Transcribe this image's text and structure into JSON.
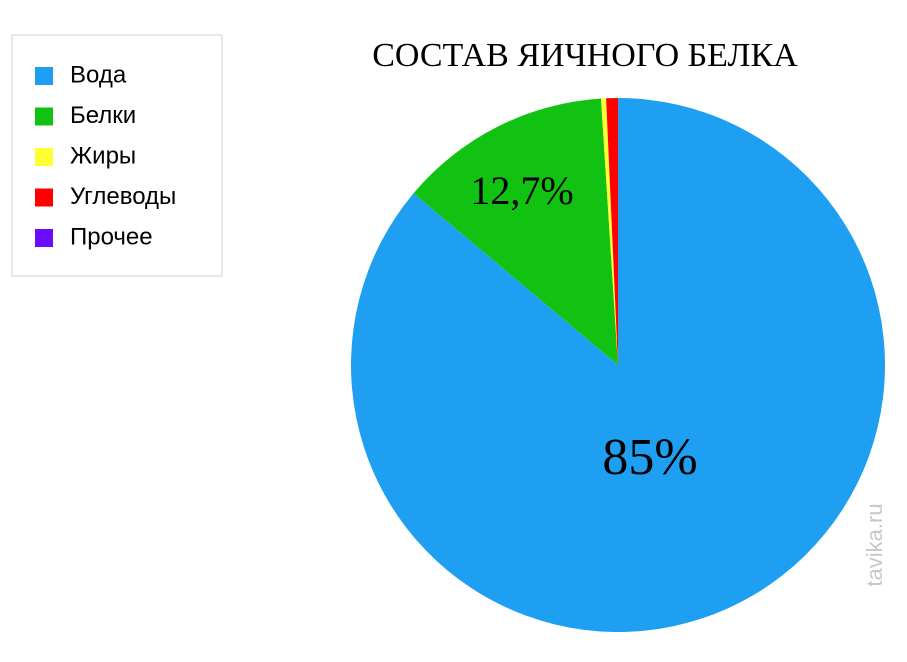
{
  "chart_data": {
    "type": "pie",
    "title": "СОСТАВ ЯИЧНОГО БЕЛКА",
    "categories": [
      "Вода",
      "Белки",
      "Жиры",
      "Углеводы",
      "Прочее"
    ],
    "values": [
      85,
      12.7,
      0.3,
      0.7,
      0
    ],
    "value_labels": [
      "85%",
      "12,7%",
      null,
      null,
      null
    ],
    "colors": [
      "#1e9ff2",
      "#12c212",
      "#ffff33",
      "#ff0000",
      "#6a0dff"
    ],
    "legend": "upper left",
    "watermark": "tavika.ru"
  }
}
